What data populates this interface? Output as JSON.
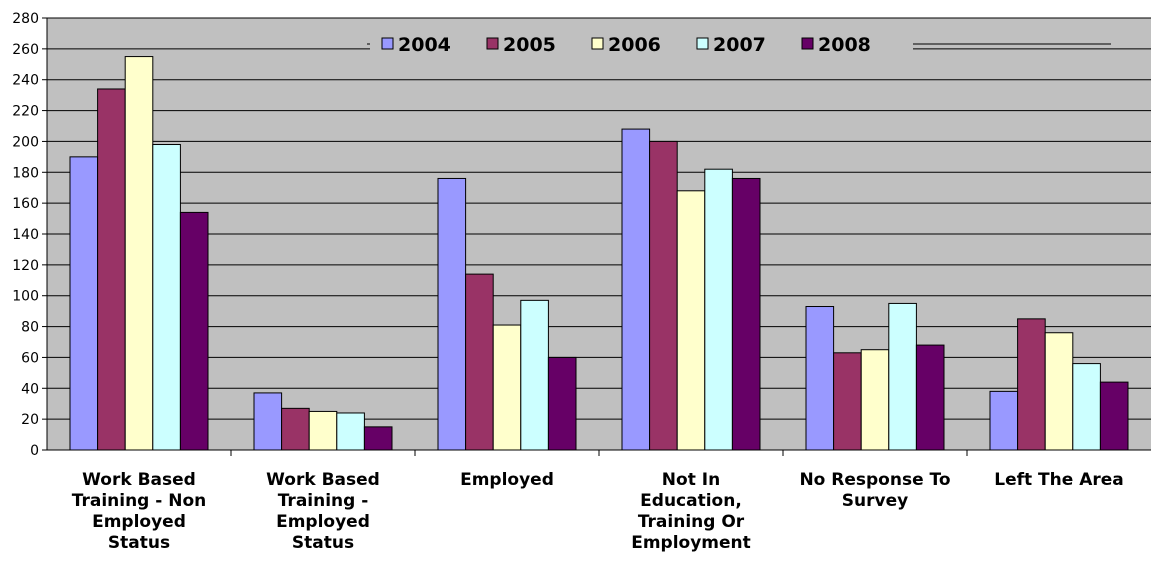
{
  "chart_data": {
    "type": "bar",
    "title": "",
    "xlabel": "",
    "ylabel": "",
    "ylim": [
      0,
      280
    ],
    "yticks": [
      0,
      20,
      40,
      60,
      80,
      100,
      120,
      140,
      160,
      180,
      200,
      220,
      240,
      260,
      280
    ],
    "grid": true,
    "legend_position": "top",
    "background_color": "#c0c0c0",
    "categories": [
      [
        "Work Based",
        "Training - Non",
        "Employed",
        "Status"
      ],
      [
        "Work Based",
        "Training -",
        "Employed",
        "Status"
      ],
      [
        "Employed"
      ],
      [
        "Not In",
        "Education,",
        "Training Or",
        "Employment"
      ],
      [
        "No Response To",
        "Survey"
      ],
      [
        "Left The Area"
      ]
    ],
    "series": [
      {
        "name": "2004",
        "color": "#9999ff",
        "values": [
          190,
          37,
          176,
          208,
          93,
          38
        ]
      },
      {
        "name": "2005",
        "color": "#993366",
        "values": [
          234,
          27,
          114,
          200,
          63,
          85
        ]
      },
      {
        "name": "2006",
        "color": "#ffffcc",
        "values": [
          255,
          25,
          81,
          168,
          65,
          76
        ]
      },
      {
        "name": "2007",
        "color": "#ccffff",
        "values": [
          198,
          24,
          97,
          182,
          95,
          56
        ]
      },
      {
        "name": "2008",
        "color": "#660066",
        "values": [
          154,
          15,
          60,
          176,
          68,
          44
        ]
      }
    ]
  }
}
